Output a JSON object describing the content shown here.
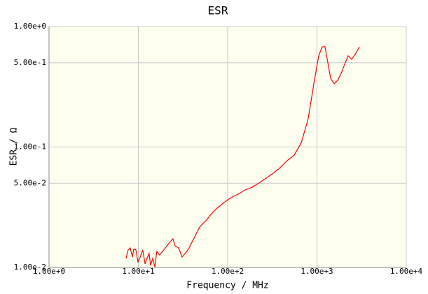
{
  "chart_data": {
    "type": "line",
    "title": "ESR",
    "x_label": "Frequency / MHz",
    "y_label": "ESR / Ω",
    "x_log": true,
    "y_log": true,
    "grid": true,
    "xlim": [
      1,
      10000
    ],
    "xticks": [
      {
        "value": 1,
        "label": "1.00e+0"
      },
      {
        "value": 10,
        "label": "1.00e+1"
      },
      {
        "value": 100,
        "label": "1.00e+2"
      },
      {
        "value": 1000,
        "label": "1.00e+3"
      },
      {
        "value": 10000,
        "label": "1.00e+4"
      }
    ],
    "ylim": [
      0.01,
      1
    ],
    "yticks": [
      {
        "value": 0.01,
        "label": "1.00e-2"
      },
      {
        "value": 0.05,
        "label": "5.00e-2"
      },
      {
        "value": 0.1,
        "label": "1.00e-1"
      },
      {
        "value": 0.5,
        "label": "5.00e-1"
      },
      {
        "value": 1,
        "label": "1.00e+0"
      }
    ],
    "x": [
      7.29,
      7.69,
      8.12,
      8.58,
      8.89,
      9.39,
      9.91,
      10.5,
      11.2,
      11.9,
      12.5,
      13.2,
      13.7,
      14.5,
      15.3,
      16.1,
      17.3,
      18.7,
      20.0,
      21.5,
      23.2,
      24.4,
      25.8,
      28.3,
      30.9,
      33.8,
      37.0,
      40.5,
      44.4,
      48.6,
      53.1,
      58.2,
      63.7,
      69.7,
      76.3,
      91.4,
      109,
      131,
      157,
      188,
      225,
      270,
      324,
      388,
      464,
      556,
      666,
      798,
      922,
      1046,
      1145,
      1230,
      1324,
      1422,
      1556,
      1703,
      1866,
      2042,
      2234,
      2445,
      2675,
      2985
    ],
    "series": [
      {
        "name": "ESR",
        "color": "#ff0000",
        "values": [
          0.0119,
          0.014,
          0.0145,
          0.0122,
          0.0142,
          0.014,
          0.0111,
          0.0122,
          0.014,
          0.0107,
          0.0119,
          0.0131,
          0.0104,
          0.0119,
          0.0101,
          0.0136,
          0.0127,
          0.0136,
          0.0145,
          0.0155,
          0.0166,
          0.0173,
          0.0151,
          0.0145,
          0.0122,
          0.0132,
          0.0145,
          0.0166,
          0.019,
          0.0217,
          0.0232,
          0.0248,
          0.0272,
          0.0291,
          0.0311,
          0.0346,
          0.038,
          0.0406,
          0.044,
          0.0464,
          0.0503,
          0.0552,
          0.0606,
          0.0675,
          0.0771,
          0.0857,
          0.108,
          0.172,
          0.335,
          0.571,
          0.679,
          0.679,
          0.5,
          0.372,
          0.335,
          0.358,
          0.409,
          0.486,
          0.571,
          0.534,
          0.587,
          0.679
        ]
      }
    ],
    "plot_background": "#fffff0"
  }
}
